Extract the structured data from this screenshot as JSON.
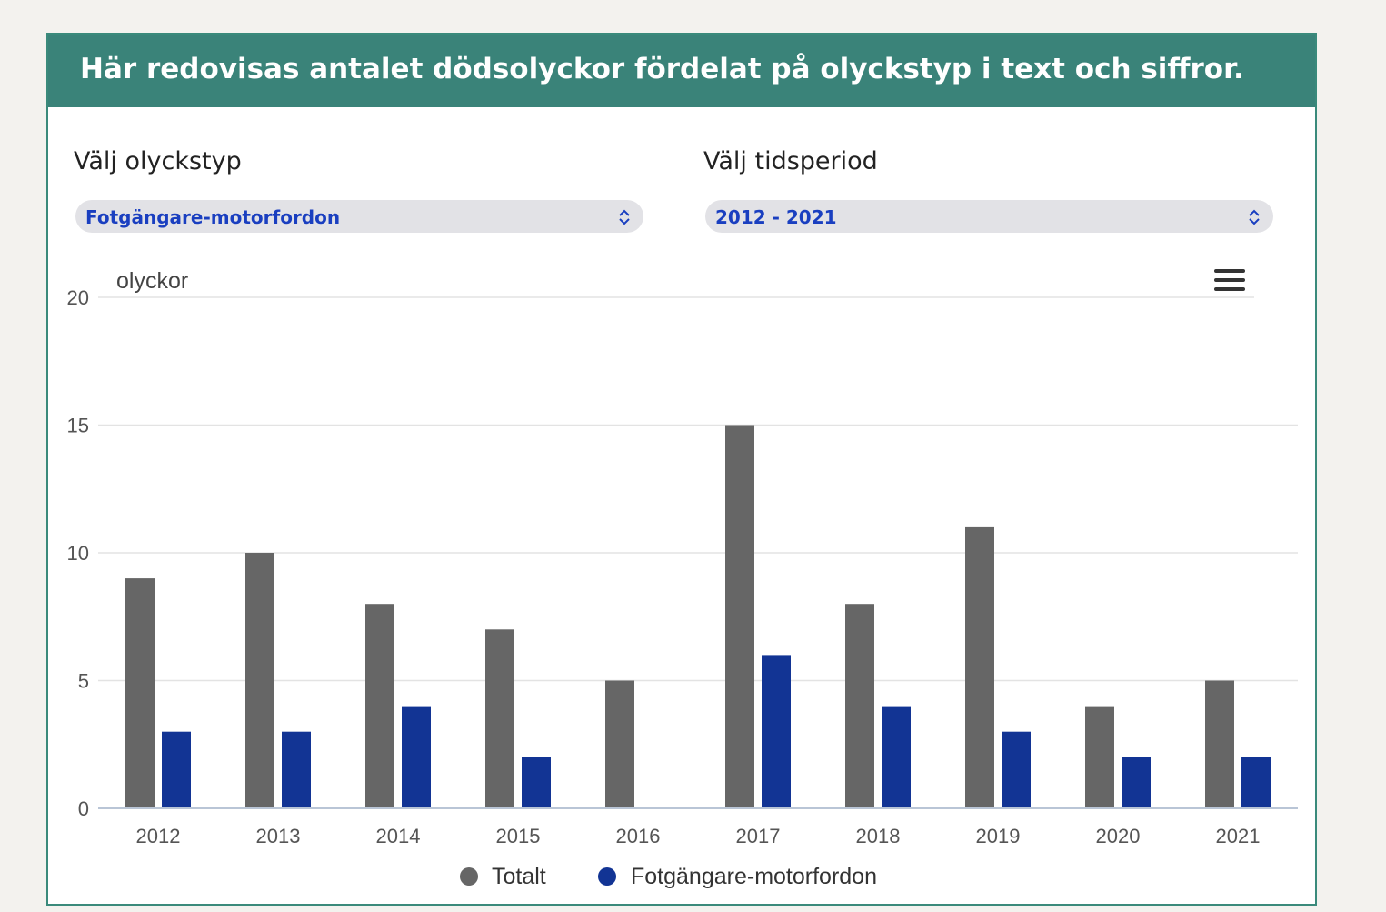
{
  "header": {
    "title": "Här redovisas antalet dödsolyckor fördelat på olyckstyp i text och siffror."
  },
  "controls": {
    "type": {
      "label": "Välj olyckstyp",
      "value": "Fotgängare-motorfordon"
    },
    "period": {
      "label": "Välj tidsperiod",
      "value": "2012 - 2021"
    }
  },
  "chart_data": {
    "type": "bar",
    "ylabel": "olyckor",
    "ylim": [
      0,
      20
    ],
    "yticks": [
      0,
      5,
      10,
      15,
      20
    ],
    "categories": [
      "2012",
      "2013",
      "2014",
      "2015",
      "2016",
      "2017",
      "2018",
      "2019",
      "2020",
      "2021"
    ],
    "series": [
      {
        "name": "Totalt",
        "color": "#666666",
        "values": [
          9,
          10,
          8,
          7,
          5,
          15,
          8,
          11,
          4,
          5
        ]
      },
      {
        "name": "Fotgängare-motorfordon",
        "color": "#123494",
        "values": [
          3,
          3,
          4,
          2,
          0,
          6,
          4,
          3,
          2,
          2
        ]
      }
    ],
    "legend": "bottom-center"
  },
  "icons": {
    "menu": "hamburger-menu-icon",
    "select_arrow": "chevron-up-down-icon"
  }
}
